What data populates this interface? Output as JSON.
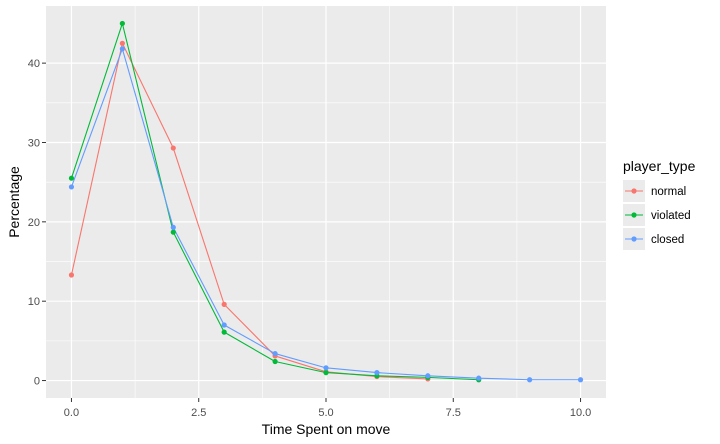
{
  "chart_data": {
    "type": "line",
    "title": "",
    "xlabel": "Time Spent on move",
    "ylabel": "Percentage",
    "xlim": [
      -0.5,
      10.5
    ],
    "ylim": [
      -2.2,
      47.2
    ],
    "x_ticks": [
      0,
      2.5,
      5,
      7.5,
      10
    ],
    "x_tick_labels": [
      "0.0",
      "2.5",
      "5.0",
      "7.5",
      "10.0"
    ],
    "y_ticks": [
      0,
      10,
      20,
      30,
      40
    ],
    "y_tick_labels": [
      "0",
      "10",
      "20",
      "30",
      "40"
    ],
    "grid": true,
    "legend_title": "player_type",
    "legend_position": "right",
    "series": [
      {
        "name": "normal",
        "color": "#F8766D",
        "x": [
          0,
          1,
          2,
          3,
          4,
          5,
          6,
          7
        ],
        "values": [
          13.3,
          42.5,
          29.3,
          9.6,
          3.1,
          1.1,
          0.5,
          0.2
        ]
      },
      {
        "name": "violated",
        "color": "#00BA38",
        "x": [
          0,
          1,
          2,
          3,
          4,
          5,
          6,
          7,
          8
        ],
        "values": [
          25.5,
          45.0,
          18.7,
          6.1,
          2.4,
          1.0,
          0.6,
          0.4,
          0.1
        ]
      },
      {
        "name": "closed",
        "color": "#619CFF",
        "x": [
          0,
          1,
          2,
          3,
          4,
          5,
          6,
          7,
          8,
          9,
          10
        ],
        "values": [
          24.4,
          41.8,
          19.3,
          7.0,
          3.4,
          1.6,
          1.0,
          0.6,
          0.3,
          0.1,
          0.1
        ]
      }
    ]
  }
}
